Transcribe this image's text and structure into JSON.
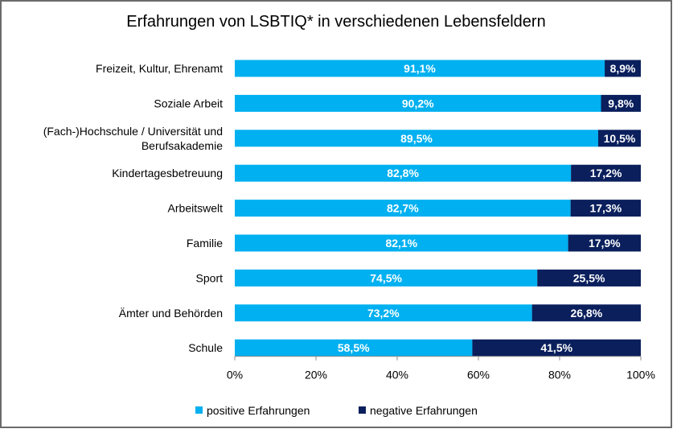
{
  "chart_data": {
    "type": "bar",
    "orientation": "horizontal",
    "stacked": true,
    "title": "Erfahrungen von LSBTIQ* in verschiedenen Lebensfeldern",
    "xlabel": "",
    "ylabel": "",
    "xlim": [
      0,
      100
    ],
    "x_ticks": [
      "0%",
      "20%",
      "40%",
      "60%",
      "80%",
      "100%"
    ],
    "categories": [
      "Freizeit, Kultur, Ehrenamt",
      "Soziale Arbeit",
      "(Fach-)Hochschule / Universität und Berufsakademie",
      "Kindertagesbetreuung",
      "Arbeitswelt",
      "Familie",
      "Sport",
      "Ämter und Behörden",
      "Schule"
    ],
    "category_lines": [
      [
        "Freizeit, Kultur, Ehrenamt"
      ],
      [
        "Soziale Arbeit"
      ],
      [
        "(Fach-)Hochschule / Universität und",
        "Berufsakademie"
      ],
      [
        "Kindertagesbetreuung"
      ],
      [
        "Arbeitswelt"
      ],
      [
        "Familie"
      ],
      [
        "Sport"
      ],
      [
        "Ämter und Behörden"
      ],
      [
        "Schule"
      ]
    ],
    "series": [
      {
        "name": "positive Erfahrungen",
        "color": "#00b0f0",
        "values": [
          91.1,
          90.2,
          89.5,
          82.8,
          82.7,
          82.1,
          74.5,
          73.2,
          58.5
        ],
        "labels": [
          "91,1%",
          "90,2%",
          "89,5%",
          "82,8%",
          "82,7%",
          "82,1%",
          "74,5%",
          "73,2%",
          "58,5%"
        ]
      },
      {
        "name": "negative Erfahrungen",
        "color": "#0a1f5c",
        "values": [
          8.9,
          9.8,
          10.5,
          17.2,
          17.3,
          17.9,
          25.5,
          26.8,
          41.5
        ],
        "labels": [
          "8,9%",
          "9,8%",
          "10,5%",
          "17,2%",
          "17,3%",
          "17,9%",
          "25,5%",
          "26,8%",
          "41,5%"
        ]
      }
    ],
    "legend": [
      "positive Erfahrungen",
      "negative Erfahrungen"
    ],
    "legend_position": "bottom",
    "grid": false
  }
}
